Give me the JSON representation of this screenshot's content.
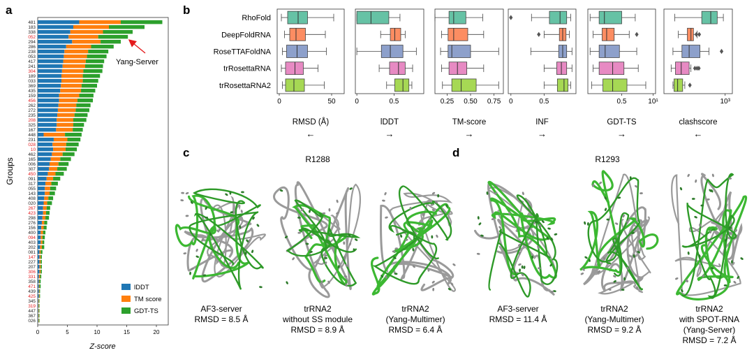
{
  "panels": {
    "a": {
      "letter": "a",
      "ylabel": "Groups",
      "xlabel": "Z-score",
      "annotation": "Yang-Server",
      "legend": [
        "lDDT",
        "TM score",
        "GDT-TS"
      ]
    },
    "b": {
      "letter": "b",
      "methods": [
        "RhoFold",
        "DeepFoldRNA",
        "RoseTTAFoldNA",
        "trRosettaRNA",
        "trRosettaRNA2"
      ],
      "metrics": [
        {
          "label": "RMSD (Å)",
          "arrow": "←",
          "ticks": [
            "0",
            "50"
          ]
        },
        {
          "label": "lDDT",
          "arrow": "→",
          "ticks": [
            "0",
            "0.5"
          ]
        },
        {
          "label": "TM-score",
          "arrow": "→",
          "ticks": [
            "0.25",
            "0.50",
            "0.75"
          ]
        },
        {
          "label": "INF",
          "arrow": "→",
          "ticks": [
            "0",
            "0.5"
          ]
        },
        {
          "label": "GDT-TS",
          "arrow": "→",
          "ticks": [
            "0.5"
          ]
        },
        {
          "label": "clashscore",
          "arrow": "←",
          "ticks": [
            "10¹",
            "10³"
          ]
        }
      ]
    },
    "c": {
      "letter": "c",
      "target": "R1288",
      "captions": [
        [
          "AF3-server",
          "RMSD = 8.5 Å"
        ],
        [
          "trRNA2",
          "without SS module",
          "RMSD = 8.9 Å"
        ],
        [
          "trRNA2",
          "(Yang-Multimer)",
          "RMSD = 6.4 Å"
        ]
      ]
    },
    "d": {
      "letter": "d",
      "target": "R1293",
      "captions": [
        [
          "AF3-server",
          "RMSD = 11.4 Å"
        ],
        [
          "trRNA2",
          "(Yang-Multimer)",
          "RMSD = 9.2 Å"
        ],
        [
          "trRNA2",
          "with SPOT-RNA",
          "(Yang-Server)",
          "RMSD = 7.2 Å"
        ]
      ]
    }
  },
  "colors": {
    "lddt": "#1f77b4",
    "tm": "#ff7f0e",
    "gdt": "#2ca02c",
    "highlight": "#e41a1c",
    "RhoFold": "#66c2a5",
    "DeepFoldRNA": "#fc8d62",
    "RoseTTAFoldNA": "#8da0cb",
    "trRosettaRNA": "#e78ac3",
    "trRosettaRNA2": "#a6d854"
  },
  "chart_data": [
    {
      "type": "bar",
      "orientation": "horizontal",
      "stacked": true,
      "xlabel": "Z-score",
      "ylabel": "Groups",
      "xlim": [
        0,
        22
      ],
      "xticks": [
        0,
        5,
        10,
        15,
        20
      ],
      "legend_position": "bottom-right",
      "categories": [
        "481",
        "183",
        "338",
        "052",
        "294",
        "286",
        "238",
        "053",
        "417",
        "241",
        "304",
        "189",
        "033",
        "369",
        "435",
        "159",
        "456",
        "262",
        "272",
        "235",
        "208",
        "325",
        "167",
        "448",
        "231",
        "028",
        "10",
        "462",
        "165",
        "006",
        "307",
        "450",
        "091",
        "317",
        "055",
        "143",
        "408",
        "020",
        "267",
        "423",
        "298",
        "276",
        "156",
        "400",
        "094",
        "403",
        "202",
        "081",
        "147",
        "227",
        "207",
        "306",
        "331",
        "358",
        "471",
        "439",
        "425",
        "345",
        "319",
        "447",
        "367",
        "026"
      ],
      "highlighted": [
        "052",
        "304",
        "456",
        "208",
        "028",
        "10",
        "450",
        "267",
        "423",
        "094",
        "147",
        "306",
        "331",
        "471",
        "425",
        "319"
      ],
      "series": [
        {
          "name": "lDDT",
          "values": [
            7.0,
            6.0,
            5.5,
            5.2,
            5.8,
            4.8,
            4.5,
            4.4,
            4.3,
            4.2,
            4.1,
            4.0,
            4.0,
            3.9,
            3.8,
            3.6,
            3.6,
            3.5,
            3.4,
            3.3,
            3.2,
            3.2,
            3.1,
            1.0,
            2.7,
            2.5,
            2.6,
            2.4,
            2.2,
            2.0,
            1.9,
            1.7,
            1.5,
            1.3,
            1.2,
            1.2,
            1.1,
            1.0,
            0.9,
            0.9,
            0.8,
            0.7,
            0.6,
            0.5,
            0.5,
            0.5,
            0.4,
            0.3,
            0.3,
            0.3,
            0.3,
            0.3,
            0.2,
            0.2,
            0.2,
            0.2,
            0.2,
            0.1,
            0.1,
            0.1,
            0.1,
            0.1
          ]
        },
        {
          "name": "TM score",
          "values": [
            7.0,
            6.0,
            5.5,
            5.0,
            4.8,
            4.2,
            4.0,
            3.9,
            3.8,
            3.8,
            3.6,
            3.6,
            3.6,
            3.5,
            3.5,
            3.4,
            3.1,
            3.0,
            3.0,
            2.9,
            2.8,
            2.8,
            2.8,
            3.6,
            2.3,
            2.3,
            2.1,
            1.8,
            1.6,
            1.5,
            1.4,
            1.3,
            1.1,
            1.0,
            0.9,
            0.8,
            0.7,
            0.6,
            0.6,
            0.5,
            0.5,
            0.4,
            0.4,
            0.4,
            0.3,
            0.3,
            0.3,
            0.2,
            0.2,
            0.2,
            0.2,
            0.2,
            0.2,
            0.1,
            0.1,
            0.1,
            0.1,
            0.1,
            0.1,
            0.1,
            0.1,
            0.1
          ]
        },
        {
          "name": "GDT-TS",
          "values": [
            7.0,
            6.0,
            5.0,
            5.0,
            3.4,
            3.8,
            3.4,
            3.3,
            3.1,
            3.0,
            3.2,
            2.9,
            2.6,
            2.6,
            2.4,
            2.4,
            2.6,
            2.4,
            2.3,
            2.2,
            2.2,
            1.8,
            1.7,
            2.8,
            2.2,
            2.1,
            1.9,
            2.0,
            1.8,
            1.7,
            1.6,
            1.4,
            1.2,
            1.1,
            1.0,
            0.9,
            0.8,
            0.8,
            0.6,
            0.6,
            0.6,
            0.5,
            0.5,
            0.4,
            0.4,
            0.3,
            0.4,
            0.3,
            0.2,
            0.2,
            0.2,
            0.2,
            0.2,
            0.2,
            0.2,
            0.1,
            0.1,
            0.1,
            0.1,
            0.1,
            0.1,
            0.1
          ]
        }
      ]
    },
    {
      "type": "box",
      "orientation": "horizontal",
      "categories": [
        "RhoFold",
        "DeepFoldRNA",
        "RoseTTAFoldNA",
        "trRosettaRNA",
        "trRosettaRNA2"
      ],
      "metrics": [
        {
          "name": "RMSD (Å)",
          "direction": "lower is better",
          "xlim": [
            -2,
            62
          ],
          "ticks": [
            0,
            50
          ],
          "log": false,
          "stats": [
            {
              "wmin": 2,
              "q1": 8,
              "median": 18,
              "q3": 27,
              "wmax": 52,
              "outliers": []
            },
            {
              "wmin": 5,
              "q1": 10,
              "median": 16,
              "q3": 25,
              "wmax": 44,
              "outliers": []
            },
            {
              "wmin": 3,
              "q1": 7,
              "median": 17,
              "q3": 27,
              "wmax": 45,
              "outliers": []
            },
            {
              "wmin": 2,
              "q1": 6,
              "median": 15,
              "q3": 23,
              "wmax": 37,
              "outliers": []
            },
            {
              "wmin": 3,
              "q1": 6,
              "median": 14,
              "q3": 24,
              "wmax": 43,
              "outliers": []
            }
          ]
        },
        {
          "name": "lDDT",
          "direction": "higher is better",
          "xlim": [
            -0.02,
            0.9
          ],
          "ticks": [
            0,
            0.5
          ],
          "log": false,
          "stats": [
            {
              "wmin": 0.0,
              "q1": 0.0,
              "median": 0.19,
              "q3": 0.43,
              "wmax": 0.58,
              "outliers": []
            },
            {
              "wmin": 0.32,
              "q1": 0.45,
              "median": 0.51,
              "q3": 0.59,
              "wmax": 0.65,
              "outliers": []
            },
            {
              "wmin": 0.0,
              "q1": 0.33,
              "median": 0.45,
              "q3": 0.62,
              "wmax": 0.8,
              "outliers": []
            },
            {
              "wmin": 0.3,
              "q1": 0.44,
              "median": 0.56,
              "q3": 0.65,
              "wmax": 0.75,
              "outliers": []
            },
            {
              "wmin": 0.4,
              "q1": 0.51,
              "median": 0.62,
              "q3": 0.7,
              "wmax": 0.74,
              "outliers": []
            }
          ]
        },
        {
          "name": "TM-score",
          "direction": "higher is better",
          "xlim": [
            0.12,
            0.85
          ],
          "ticks": [
            0.25,
            0.5,
            0.75
          ],
          "log": false,
          "stats": [
            {
              "wmin": 0.12,
              "q1": 0.27,
              "median": 0.32,
              "q3": 0.45,
              "wmax": 0.63,
              "outliers": []
            },
            {
              "wmin": 0.19,
              "q1": 0.26,
              "median": 0.32,
              "q3": 0.47,
              "wmax": 0.64,
              "outliers": []
            },
            {
              "wmin": 0.18,
              "q1": 0.26,
              "median": 0.3,
              "q3": 0.5,
              "wmax": 0.8,
              "outliers": []
            },
            {
              "wmin": 0.19,
              "q1": 0.27,
              "median": 0.36,
              "q3": 0.46,
              "wmax": 0.64,
              "outliers": []
            },
            {
              "wmin": 0.2,
              "q1": 0.3,
              "median": 0.4,
              "q3": 0.56,
              "wmax": 0.8,
              "outliers": []
            }
          ]
        },
        {
          "name": "INF",
          "direction": "higher is better",
          "xlim": [
            -0.04,
            0.98
          ],
          "ticks": [
            0,
            0.5
          ],
          "log": false,
          "stats": [
            {
              "wmin": 0.31,
              "q1": 0.58,
              "median": 0.74,
              "q3": 0.84,
              "wmax": 0.9,
              "outliers": [
                0.0
              ]
            },
            {
              "wmin": 0.5,
              "q1": 0.73,
              "median": 0.78,
              "q3": 0.83,
              "wmax": 0.88,
              "outliers": [
                0.42
              ]
            },
            {
              "wmin": 0.3,
              "q1": 0.72,
              "median": 0.78,
              "q3": 0.84,
              "wmax": 0.92,
              "outliers": []
            },
            {
              "wmin": 0.5,
              "q1": 0.69,
              "median": 0.76,
              "q3": 0.84,
              "wmax": 0.92,
              "outliers": []
            },
            {
              "wmin": 0.5,
              "q1": 0.7,
              "median": 0.8,
              "q3": 0.86,
              "wmax": 0.9,
              "outliers": []
            }
          ]
        },
        {
          "name": "GDT-TS",
          "direction": "higher is better",
          "xlim": [
            0.05,
            0.95
          ],
          "ticks": [
            0.5
          ],
          "log": false,
          "stats": [
            {
              "wmin": 0.08,
              "q1": 0.2,
              "median": 0.27,
              "q3": 0.5,
              "wmax": 0.68,
              "outliers": []
            },
            {
              "wmin": 0.12,
              "q1": 0.24,
              "median": 0.3,
              "q3": 0.4,
              "wmax": 0.6,
              "outliers": [
                0.7
              ]
            },
            {
              "wmin": 0.08,
              "q1": 0.2,
              "median": 0.28,
              "q3": 0.47,
              "wmax": 0.7,
              "outliers": []
            },
            {
              "wmin": 0.12,
              "q1": 0.2,
              "median": 0.38,
              "q3": 0.53,
              "wmax": 0.72,
              "outliers": []
            },
            {
              "wmin": 0.1,
              "q1": 0.25,
              "median": 0.38,
              "q3": 0.57,
              "wmax": 0.82,
              "outliers": []
            }
          ]
        },
        {
          "name": "clashscore",
          "direction": "lower is better",
          "xlim": [
            1.3,
            3.2
          ],
          "ticks": [
            1,
            3
          ],
          "tick_labels": [
            "10¹",
            "10³"
          ],
          "log": true,
          "stats": [
            {
              "wmin": 1.6,
              "q1": 2.35,
              "median": 2.6,
              "q3": 2.78,
              "wmax": 2.95,
              "outliers": []
            },
            {
              "wmin": 1.7,
              "q1": 1.95,
              "median": 2.05,
              "q3": 2.12,
              "wmax": 2.22,
              "outliers": [
                2.2,
                2.28
              ]
            },
            {
              "wmin": 1.55,
              "q1": 1.8,
              "median": 2.0,
              "q3": 2.3,
              "wmax": 2.55,
              "outliers": [
                2.9
              ]
            },
            {
              "wmin": 1.5,
              "q1": 1.62,
              "median": 1.78,
              "q3": 2.0,
              "wmax": 2.05,
              "outliers": [
                2.16,
                2.22,
                2.27
              ]
            },
            {
              "wmin": 1.55,
              "q1": 1.58,
              "median": 1.68,
              "q3": 1.82,
              "wmax": 1.88,
              "outliers": [
                2.02
              ]
            }
          ]
        }
      ]
    }
  ]
}
